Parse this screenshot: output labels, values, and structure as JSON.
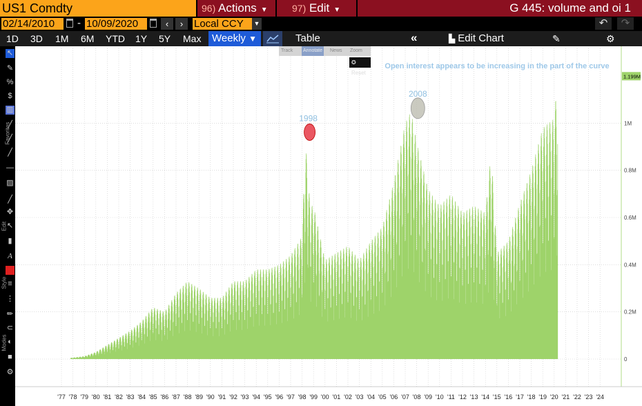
{
  "header": {
    "ticker": "US1 Comdty",
    "actions_num": "96)",
    "actions_label": "Actions",
    "edit_num": "97)",
    "edit_label": "Edit",
    "chart_title": "G 445: volume and oi 1"
  },
  "dates": {
    "start": "02/14/2010",
    "end": "10/09/2020",
    "separator": "-"
  },
  "currency": "Local CCY",
  "periods": [
    "1D",
    "3D",
    "1M",
    "6M",
    "YTD",
    "1Y",
    "5Y",
    "Max"
  ],
  "frequency": "Weekly",
  "table_label": "Table",
  "edit_chart_label": "Edit Chart",
  "zoom_tools": [
    "Track",
    "Annotate",
    "News",
    "Zoom"
  ],
  "reset_label": "Reset",
  "sidebar_labels": {
    "favorites": "Favorites",
    "edit": "Edit",
    "style": "Style",
    "modes": "Modes"
  },
  "icons": [
    "arrow-icon",
    "pen-icon",
    "percent-icon",
    "dollar-icon",
    "bar-icon",
    "diagonal-line-icon",
    "line-icon",
    "eraser-icon",
    "text-icon",
    "color-icon",
    "settings-icon",
    "undo-icon",
    "redo-icon",
    "gear-icon"
  ],
  "chart_data": {
    "type": "bar",
    "series": [
      {
        "name": "",
        "color": "#9ed36a"
      }
    ],
    "x_ticks": [
      "'77",
      "'78",
      "'79",
      "'80",
      "'81",
      "'82",
      "'83",
      "'84",
      "'85",
      "'86",
      "'87",
      "'88",
      "'89",
      "'90",
      "'91",
      "'92",
      "'93",
      "'94",
      "'95",
      "'96",
      "'97",
      "'98",
      "'99",
      "'00",
      "'01",
      "'02",
      "'03",
      "'04",
      "'05",
      "'06",
      "'07",
      "'08",
      "'09",
      "'10",
      "'11",
      "'12",
      "'13",
      "'14",
      "'15",
      "'16",
      "'17",
      "'18",
      "'19",
      "'20",
      "'21",
      "'22",
      "'23",
      "'24"
    ],
    "y_ticks": [
      "0",
      "0.2M",
      "0.4M",
      "0.6M",
      "0.8M",
      "1M"
    ],
    "y_range": [
      0,
      1200000
    ],
    "last_value_label": "1.199M",
    "profile_years": [
      1977.8,
      1979,
      1980,
      1981,
      1982,
      1983,
      1984,
      1985,
      1986,
      1987,
      1988,
      1989,
      1990,
      1991,
      1992,
      1993,
      1994,
      1995,
      1996,
      1997,
      1998,
      1998.3,
      1998.7,
      1999,
      2000,
      2001,
      2002,
      2003,
      2004,
      2005,
      2006,
      2007,
      2007.5,
      2008,
      2009,
      2010,
      2011,
      2012,
      2013,
      2014,
      2014.5,
      2015,
      2016,
      2017,
      2018,
      2019,
      2020,
      2020.3
    ],
    "profile_values": [
      5000,
      12000,
      30000,
      60000,
      90000,
      120000,
      160000,
      220000,
      200000,
      280000,
      330000,
      300000,
      260000,
      260000,
      330000,
      330000,
      380000,
      380000,
      400000,
      440000,
      520000,
      920000,
      650000,
      650000,
      420000,
      450000,
      480000,
      420000,
      500000,
      560000,
      750000,
      1000000,
      1050000,
      920000,
      720000,
      650000,
      700000,
      620000,
      650000,
      620000,
      880000,
      450000,
      500000,
      660000,
      800000,
      980000,
      1020000,
      1200000
    ],
    "annotations": [
      {
        "label": "1998",
        "year": 1998.3,
        "value": 950000,
        "color": "#e63946"
      },
      {
        "label": "2008",
        "year": 2007.5,
        "value": 1060000,
        "color": "#bdbdb0"
      },
      {
        "label": "Open interest appears to be increasing in the part of the curve",
        "color": "#9ec8e8"
      }
    ]
  }
}
